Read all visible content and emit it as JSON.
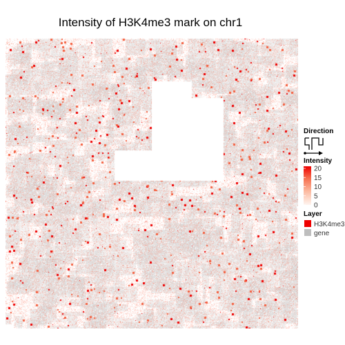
{
  "chart_data": {
    "type": "heatmap",
    "title": "Intensity of H3K4me3 mark on chr1",
    "legend": {
      "placement": "right",
      "direction": {
        "title": "Direction"
      },
      "intensity": {
        "title": "Intensity",
        "range": [
          0,
          20
        ],
        "ticks": [
          "20",
          "15",
          "10",
          "5",
          "0"
        ],
        "low_color": "#fff5f0",
        "high_color": "#ee0000"
      },
      "layer": {
        "title": "Layer",
        "items": [
          {
            "label": "H3K4me3",
            "color": "#ee0000"
          },
          {
            "label": "gene",
            "color": "#bebebe"
          }
        ]
      }
    }
  }
}
